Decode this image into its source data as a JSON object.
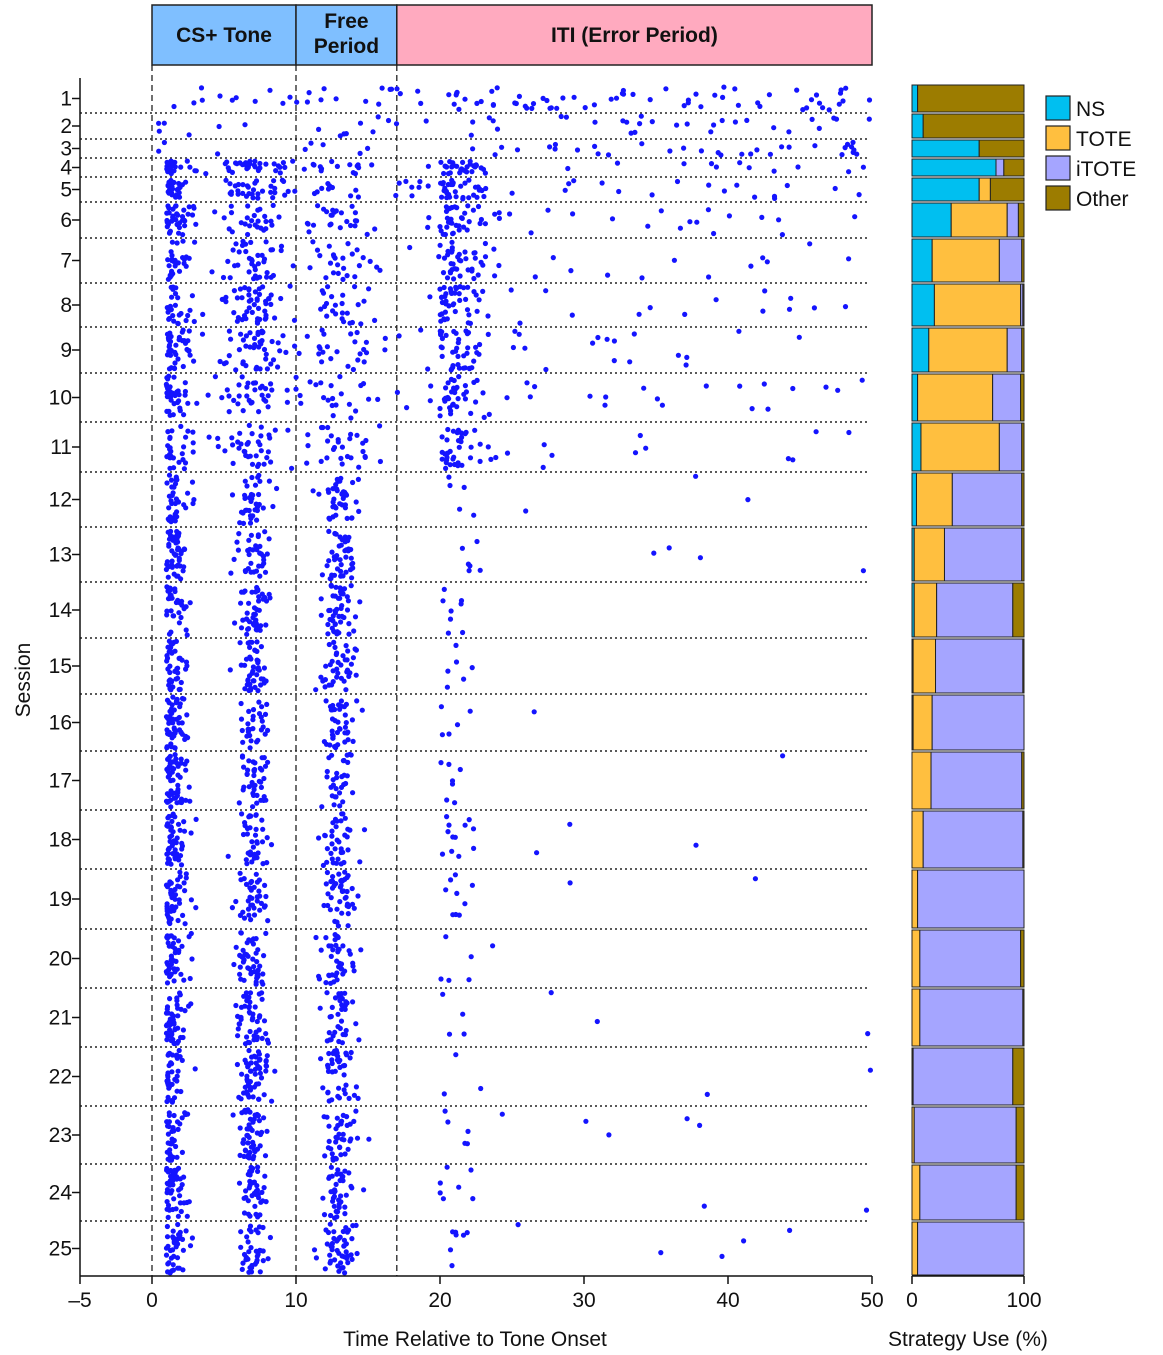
{
  "figure": {
    "y_axis_title": "Session",
    "raster_x_title": "Time Relative to Tone Onset",
    "bar_x_title": "Strategy Use (%)"
  },
  "phases": [
    {
      "label_lines": [
        "CS+ Tone"
      ],
      "start": 0,
      "end": 10,
      "color": "#7fbfff"
    },
    {
      "label_lines": [
        "Free",
        "Period"
      ],
      "start": 10,
      "end": 17,
      "color": "#7fbfff"
    },
    {
      "label_lines": [
        "ITI (Error Period)"
      ],
      "start": 17,
      "end": 50,
      "color": "#ffaabf"
    }
  ],
  "legend": [
    {
      "label": "NS",
      "color": "#00bff0"
    },
    {
      "label": "TOTE",
      "color": "#ffbf3f"
    },
    {
      "label": "iTOTE",
      "color": "#a5a5ff"
    },
    {
      "label": "Other",
      "color": "#9c7c00"
    }
  ],
  "chart_data": [
    {
      "type": "scatter",
      "description_key": "raster",
      "xlabel": "Time Relative to Tone Onset",
      "ylabel": "Session",
      "xlim": [
        -5,
        50
      ],
      "x_ticks": [
        "–5",
        "0",
        "10",
        "20",
        "30",
        "40",
        "50"
      ],
      "x_tick_values": [
        -5,
        0,
        10,
        20,
        30,
        40,
        50
      ],
      "sessions": [
        "1",
        "2",
        "3",
        "4",
        "5",
        "6",
        "7",
        "8",
        "9",
        "10",
        "11",
        "12",
        "13",
        "14",
        "15",
        "16",
        "17",
        "18",
        "19",
        "20",
        "21",
        "22",
        "23",
        "24",
        "25"
      ],
      "point_color": "#1414ff",
      "session_point_counts": [
        90,
        45,
        40,
        120,
        130,
        150,
        150,
        160,
        170,
        150,
        145,
        130,
        135,
        135,
        130,
        135,
        135,
        140,
        140,
        140,
        140,
        140,
        140,
        140,
        140
      ],
      "clusters": {
        "tone_onset": 1.0,
        "tone_offset": 7.0,
        "free_period": 13.0,
        "iti_early": 20.0
      }
    },
    {
      "type": "bar",
      "orientation": "horizontal",
      "stacked": true,
      "xlabel": "Strategy Use (%)",
      "x_ticks": [
        "0",
        "100"
      ],
      "xlim": [
        0,
        100
      ],
      "categories": [
        "1",
        "2",
        "3",
        "4",
        "5",
        "6",
        "7",
        "8",
        "9",
        "10",
        "11",
        "12",
        "13",
        "14",
        "15",
        "16",
        "17",
        "18",
        "19",
        "20",
        "21",
        "22",
        "23",
        "24",
        "25"
      ],
      "series": [
        {
          "name": "NS",
          "values": [
            5,
            10,
            60,
            75,
            60,
            35,
            18,
            20,
            15,
            5,
            8,
            4,
            2,
            2,
            1,
            1,
            0,
            0,
            0,
            0,
            0,
            0,
            0,
            0,
            0
          ]
        },
        {
          "name": "TOTE",
          "values": [
            0,
            0,
            0,
            0,
            10,
            50,
            60,
            77,
            70,
            67,
            70,
            32,
            27,
            20,
            20,
            17,
            17,
            10,
            5,
            7,
            7,
            1,
            2,
            7,
            5
          ]
        },
        {
          "name": "iTOTE",
          "values": [
            0,
            0,
            0,
            7,
            0,
            10,
            20,
            2,
            13,
            25,
            20,
            62,
            69,
            68,
            78,
            82,
            81,
            89,
            95,
            90,
            92,
            89,
            91,
            86,
            95
          ]
        },
        {
          "name": "Other",
          "values": [
            95,
            90,
            40,
            18,
            30,
            5,
            2,
            1,
            2,
            3,
            2,
            2,
            2,
            10,
            1,
            0,
            2,
            1,
            0,
            3,
            1,
            10,
            7,
            7,
            0
          ]
        }
      ]
    }
  ]
}
